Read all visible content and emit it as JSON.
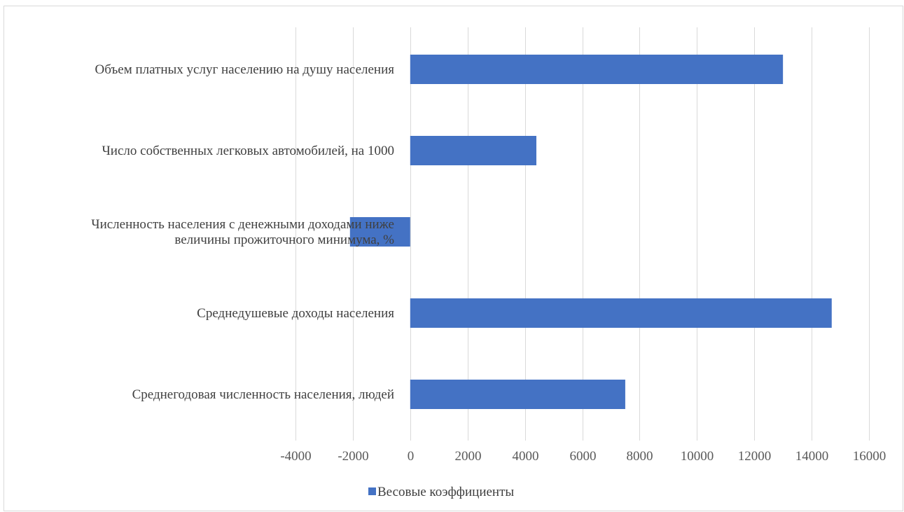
{
  "chart_data": {
    "type": "bar",
    "orientation": "horizontal",
    "categories": [
      "Объем платных услуг населению на душу населения",
      "Число собственных легковых автомобилей, на 1000",
      "Численность населения с денежными доходами ниже величины прожиточного минимума, %",
      "Среднедушевые доходы населения",
      "Среднегодовая численность населения, людей"
    ],
    "category_lines": [
      [
        "Объем платных услуг населению на душу населения"
      ],
      [
        "Число собственных легковых автомобилей, на 1000"
      ],
      [
        "Численность населения с денежными доходами ниже",
        "величины прожиточного минимума, %"
      ],
      [
        "Среднедушевые доходы населения"
      ],
      [
        "Среднегодовая численность населения, людей"
      ]
    ],
    "series": [
      {
        "name": "Весовые коэффициенты",
        "values": [
          13000,
          4400,
          -2100,
          14700,
          7500
        ],
        "color": "#4472c4"
      }
    ],
    "xlim": [
      -4000,
      16000
    ],
    "xticks": [
      -4000,
      -2000,
      0,
      2000,
      4000,
      6000,
      8000,
      10000,
      12000,
      14000,
      16000
    ],
    "xtick_labels": [
      "-4000",
      "-2000",
      "0",
      "2000",
      "4000",
      "6000",
      "8000",
      "10000",
      "12000",
      "14000",
      "16000"
    ],
    "grid": "vertical",
    "legend_position": "bottom",
    "gridline_color": "#d9d9d9"
  }
}
